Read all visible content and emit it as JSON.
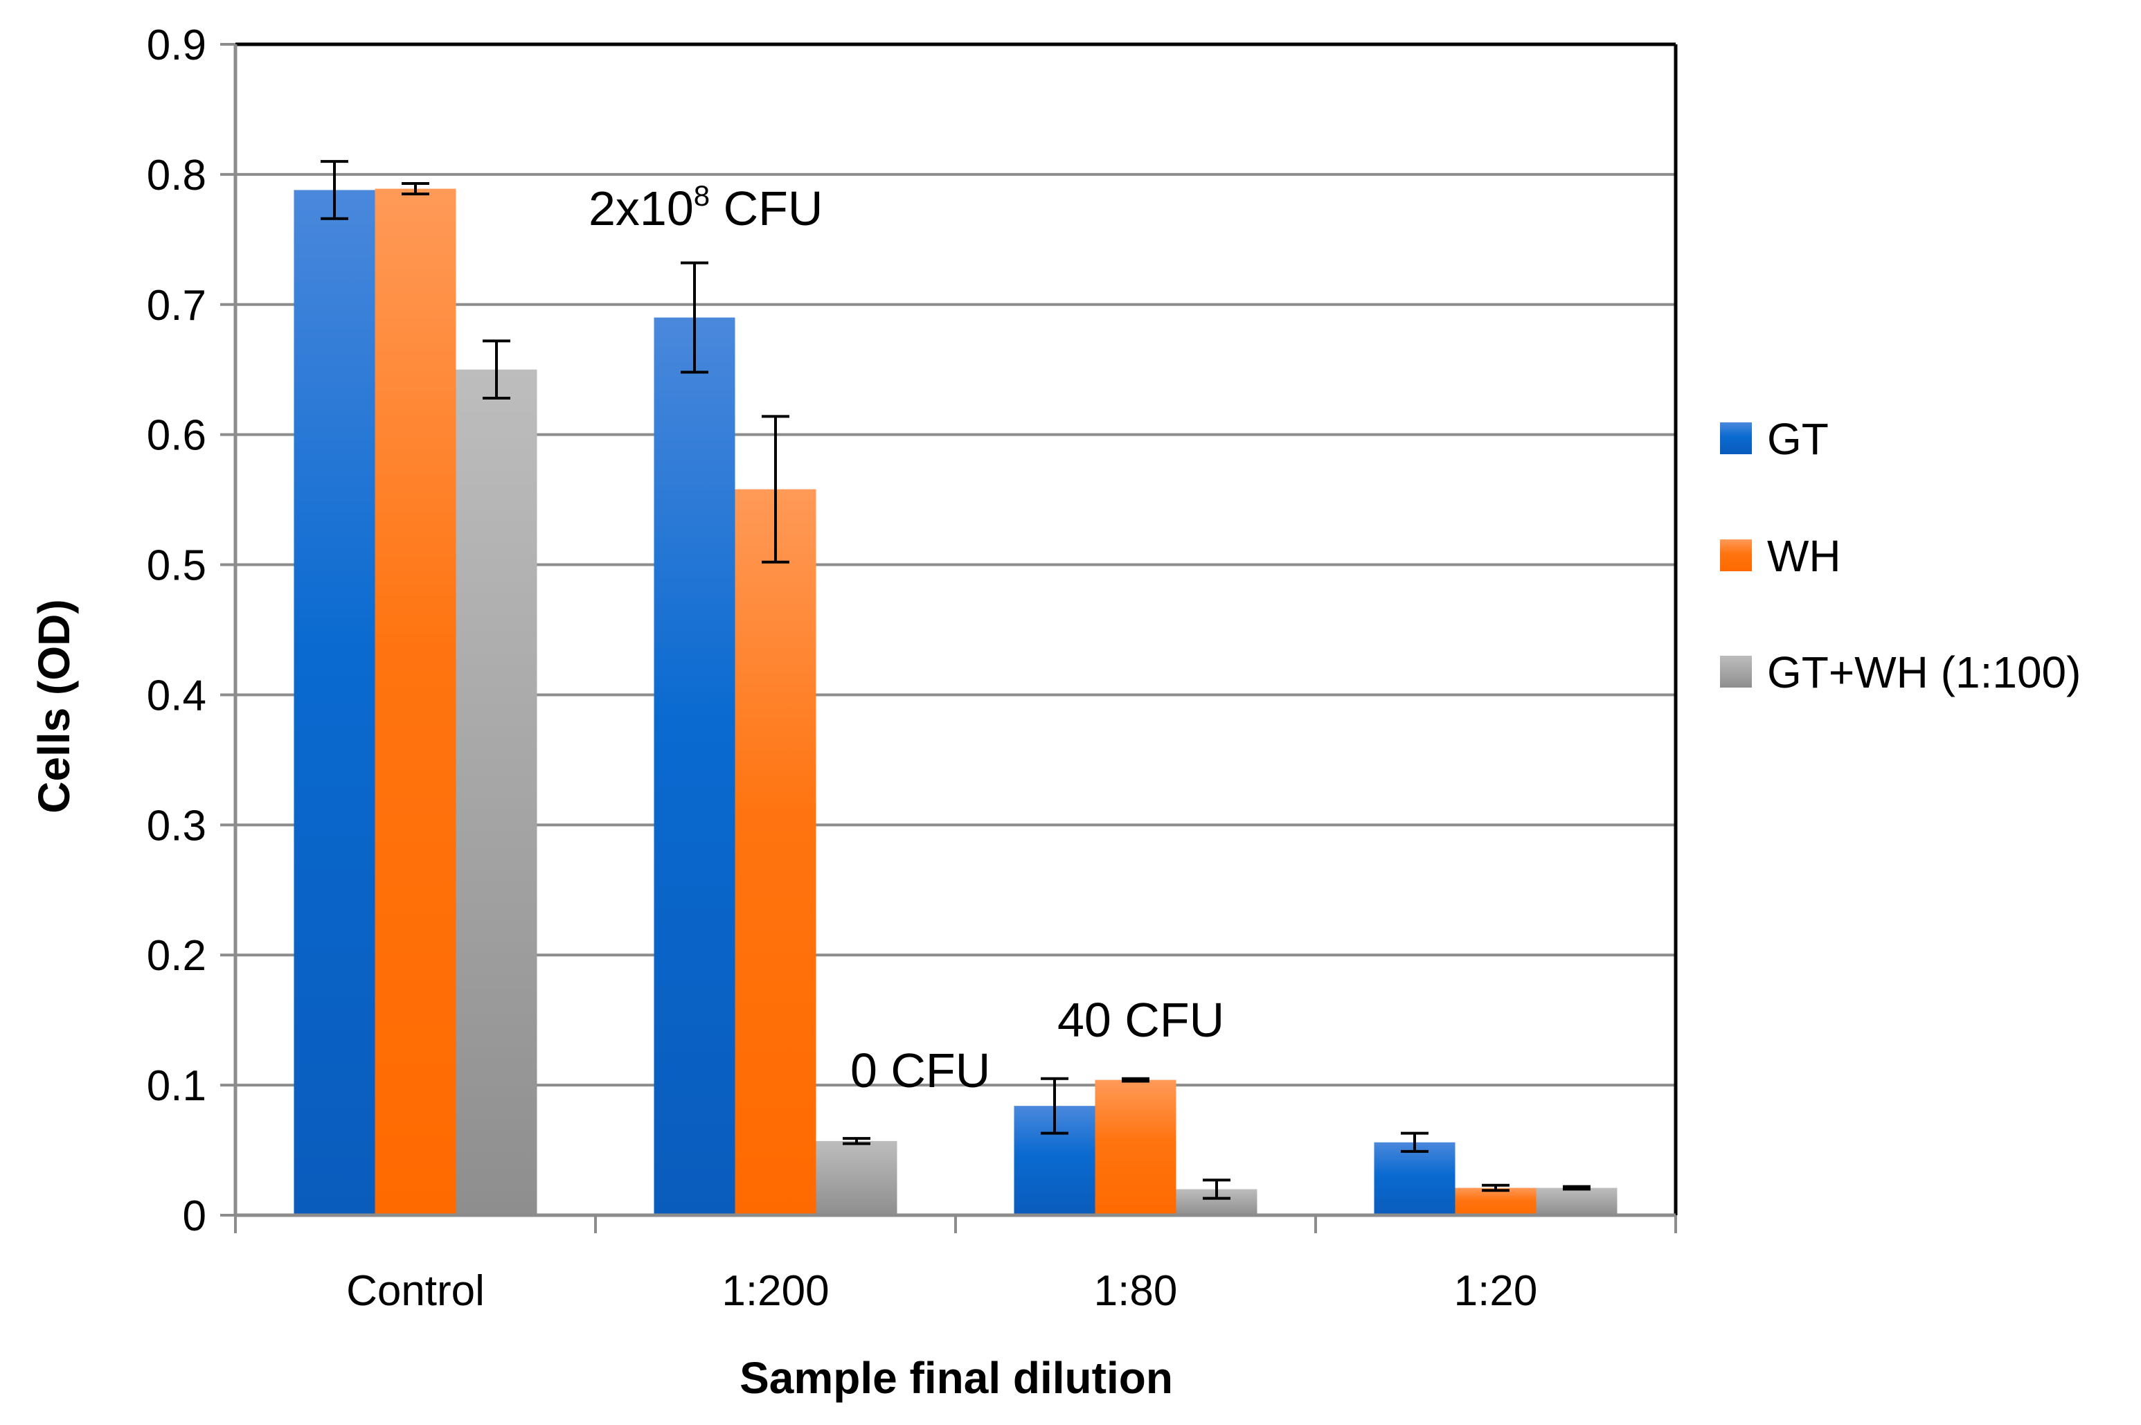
{
  "chart_data": {
    "type": "bar",
    "title": "",
    "xlabel": "Sample final dilution",
    "ylabel": "Cells (OD)",
    "ylim": [
      0,
      0.9
    ],
    "yticks": [
      "0",
      "0.1",
      "0.2",
      "0.3",
      "0.4",
      "0.5",
      "0.6",
      "0.7",
      "0.8",
      "0.9"
    ],
    "ytick_values": [
      0,
      0.1,
      0.2,
      0.3,
      0.4,
      0.5,
      0.6,
      0.7,
      0.8,
      0.9
    ],
    "grid": true,
    "legend_position": "right",
    "categories": [
      "Control",
      "1:200",
      "1:80",
      "1:20"
    ],
    "series": [
      {
        "name": "GT",
        "color": "#1f6fd6",
        "values": [
          0.788,
          0.69,
          0.084,
          0.056
        ],
        "errors": [
          0.022,
          0.042,
          0.021,
          0.007
        ]
      },
      {
        "name": "WH",
        "color": "#ff7a1a",
        "values": [
          0.789,
          0.558,
          0.104,
          0.021
        ],
        "errors": [
          0.004,
          0.056,
          0.001,
          0.002
        ]
      },
      {
        "name": "GT+WH (1:100)",
        "color": "#a8a8a8",
        "values": [
          0.65,
          0.057,
          0.02,
          0.021
        ],
        "errors": [
          0.022,
          0.002,
          0.007,
          0.001
        ]
      }
    ],
    "annotations": [
      {
        "base": "2x10",
        "sup": "8",
        "suffix": " CFU",
        "category": "1:200"
      },
      {
        "text": "0 CFU",
        "category": "1:200"
      },
      {
        "text": "40 CFU",
        "category": "1:80"
      }
    ]
  }
}
